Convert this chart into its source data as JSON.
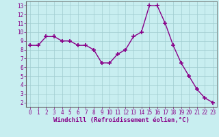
{
  "x": [
    0,
    1,
    2,
    3,
    4,
    5,
    6,
    7,
    8,
    9,
    10,
    11,
    12,
    13,
    14,
    15,
    16,
    17,
    18,
    19,
    20,
    21,
    22,
    23
  ],
  "y": [
    8.5,
    8.5,
    9.5,
    9.5,
    9.0,
    9.0,
    8.5,
    8.5,
    8.0,
    6.5,
    6.5,
    7.5,
    8.0,
    9.5,
    10.0,
    13.0,
    13.0,
    11.0,
    8.5,
    6.5,
    5.0,
    3.5,
    2.5,
    2.0
  ],
  "line_color": "#880088",
  "marker_color": "#880088",
  "bg_color": "#c8eef0",
  "grid_color": "#a0ccd0",
  "xlabel": "Windchill (Refroidissement éolien,°C)",
  "xlim": [
    -0.5,
    23.5
  ],
  "ylim": [
    1.5,
    13.5
  ],
  "yticks": [
    2,
    3,
    4,
    5,
    6,
    7,
    8,
    9,
    10,
    11,
    12,
    13
  ],
  "xticks": [
    0,
    1,
    2,
    3,
    4,
    5,
    6,
    7,
    8,
    9,
    10,
    11,
    12,
    13,
    14,
    15,
    16,
    17,
    18,
    19,
    20,
    21,
    22,
    23
  ],
  "marker_size": 4,
  "line_width": 1.0,
  "xlabel_fontsize": 6.5,
  "tick_fontsize": 5.5,
  "tick_color": "#880088",
  "border_color": "#880088",
  "spine_color": "#606060"
}
